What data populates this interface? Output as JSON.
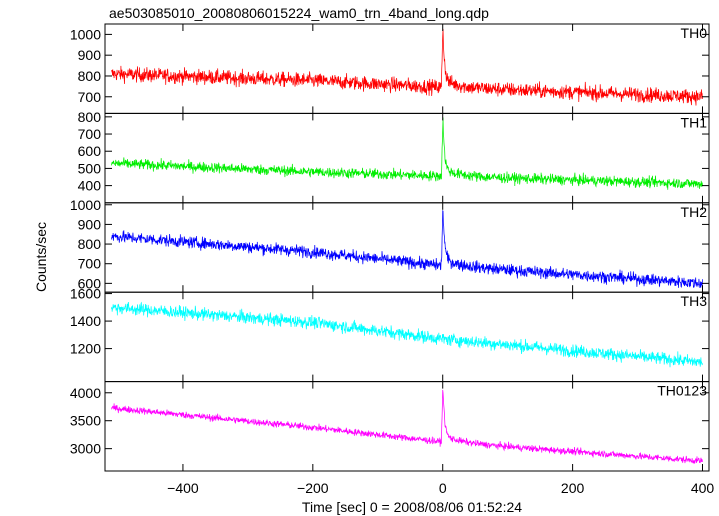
{
  "chart_data": {
    "type": "line",
    "title": "ae503085010_20080806015224_wam0_trn_4band_long.qdp",
    "xlabel": "Time [sec] 0 = 2008/08/06 01:52:24",
    "ylabel": "Counts/sec",
    "xlim": [
      -520,
      410
    ],
    "x_ticks": [
      -400,
      -200,
      0,
      200,
      400
    ],
    "grid": false,
    "legend": "none",
    "panels": [
      {
        "label": "TH0",
        "color": "#ff0000",
        "ylim": [
          620,
          1050
        ],
        "y_ticks": [
          700,
          800,
          900,
          1000
        ],
        "baseline": [
          {
            "x": -510,
            "y": 810
          },
          {
            "x": -200,
            "y": 778
          },
          {
            "x": 0,
            "y": 745
          },
          {
            "x": 400,
            "y": 700
          }
        ],
        "noise": 35,
        "peak": {
          "x": 0,
          "y": 1040
        }
      },
      {
        "label": "TH1",
        "color": "#00ee00",
        "ylim": [
          300,
          820
        ],
        "y_ticks": [
          400,
          500,
          600,
          700,
          800
        ],
        "baseline": [
          {
            "x": -510,
            "y": 530
          },
          {
            "x": -200,
            "y": 480
          },
          {
            "x": 0,
            "y": 455
          },
          {
            "x": 400,
            "y": 410
          }
        ],
        "noise": 30,
        "peak": {
          "x": 0,
          "y": 790
        }
      },
      {
        "label": "TH2",
        "color": "#0000ff",
        "ylim": [
          555,
          1010
        ],
        "y_ticks": [
          600,
          700,
          800,
          900,
          1000
        ],
        "baseline": [
          {
            "x": -510,
            "y": 840
          },
          {
            "x": -200,
            "y": 760
          },
          {
            "x": 0,
            "y": 690
          },
          {
            "x": 400,
            "y": 600
          }
        ],
        "noise": 30,
        "peak": {
          "x": 0,
          "y": 990
        }
      },
      {
        "label": "TH3",
        "color": "#00ffff",
        "ylim": [
          960,
          1610
        ],
        "y_ticks": [
          1200,
          1400,
          1600
        ],
        "baseline": [
          {
            "x": -510,
            "y": 1500
          },
          {
            "x": -200,
            "y": 1390
          },
          {
            "x": 0,
            "y": 1270
          },
          {
            "x": 400,
            "y": 1100
          }
        ],
        "noise": 45,
        "peak": null
      },
      {
        "label": "TH0123",
        "color": "#ff00ff",
        "ylim": [
          2600,
          4200
        ],
        "y_ticks": [
          3000,
          3500,
          4000
        ],
        "baseline": [
          {
            "x": -510,
            "y": 3730
          },
          {
            "x": -200,
            "y": 3380
          },
          {
            "x": 0,
            "y": 3120
          },
          {
            "x": 400,
            "y": 2780
          }
        ],
        "noise": 60,
        "peak": {
          "x": 0,
          "y": 4130
        }
      }
    ]
  }
}
